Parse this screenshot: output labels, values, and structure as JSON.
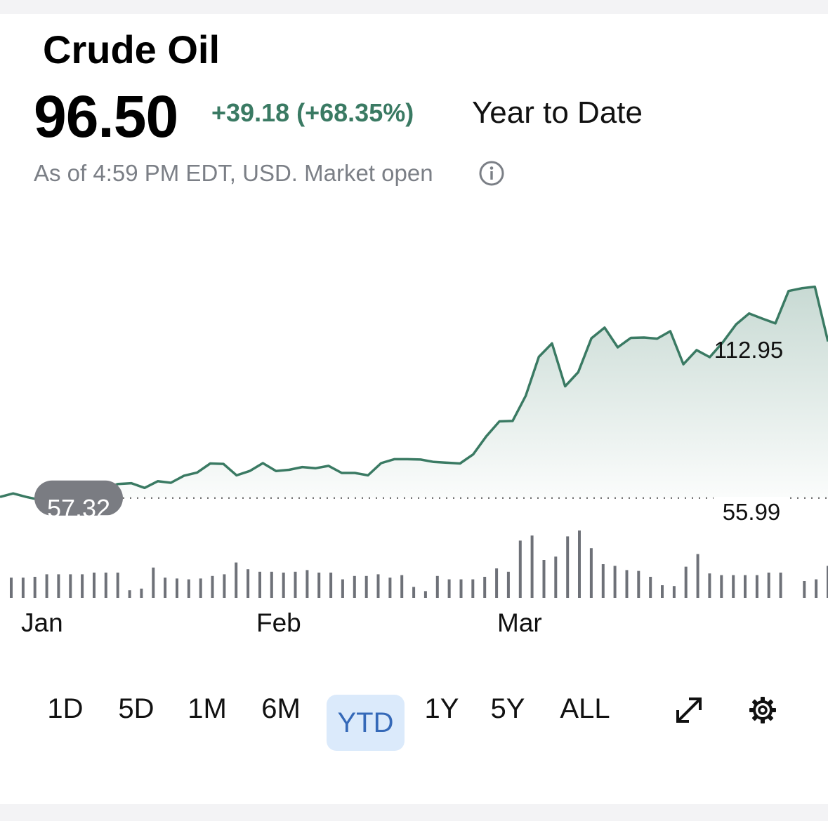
{
  "header": {
    "title": "Crude Oil",
    "price": "96.50",
    "change": "+39.18 (+68.35%)",
    "period": "Year to Date",
    "as_of": "As of 4:59 PM EDT, USD. Market open",
    "info_icon": "info-icon"
  },
  "colors": {
    "accent_green": "#3a7a63",
    "volume_gray": "#6e7178",
    "active_tab_bg": "#dbeafb",
    "active_tab_text": "#3569b8",
    "negative_red": "#c0392b"
  },
  "chart_data": {
    "type": "line",
    "x_tick_labels": [
      "Jan",
      "Feb",
      "Mar"
    ],
    "high_label": "112.95",
    "low_label": "55.99",
    "baseline_label": "57.32",
    "baseline_value": 57.32,
    "ylim": [
      40,
      125
    ],
    "series": [
      {
        "values": [
          57.6,
          58.5,
          57.6,
          56.9,
          58.0,
          58.6,
          59.5,
          59.2,
          59.9,
          60.9,
          61.1,
          59.9,
          61.6,
          61.2,
          63.0,
          63.8,
          66.1,
          66.0,
          63.1,
          64.2,
          66.2,
          64.2,
          64.5,
          65.2,
          64.9,
          65.5,
          63.7,
          63.7,
          63.1,
          66.2,
          67.2,
          67.2,
          67.1,
          66.5,
          66.3,
          66.1,
          68.4,
          73.0,
          76.8,
          76.9,
          83.3,
          93.2,
          96.6,
          85.7,
          89.3,
          97.9,
          100.6,
          95.6,
          98.0,
          98.1,
          97.8,
          99.7,
          91.3,
          94.9,
          93.1,
          96.9,
          101.4,
          104.2,
          102.9,
          101.7,
          109.9,
          110.6,
          111.0,
          97.1
        ]
      }
    ],
    "volume": [
      24,
      24,
      25,
      28,
      28,
      28,
      28,
      30,
      30,
      30,
      9,
      11,
      36,
      24,
      23,
      22,
      23,
      26,
      28,
      42,
      34,
      31,
      31,
      30,
      31,
      33,
      30,
      30,
      22,
      26,
      26,
      28,
      24,
      27,
      13,
      8,
      26,
      22,
      22,
      22,
      25,
      35,
      31,
      68,
      74,
      45,
      49,
      73,
      80,
      59,
      40,
      38,
      33,
      32,
      25,
      15,
      14,
      37,
      52,
      29,
      27,
      27,
      27,
      27,
      30,
      30,
      0,
      20,
      22,
      38
    ]
  },
  "tabs": {
    "items": [
      {
        "label": "1D"
      },
      {
        "label": "5D"
      },
      {
        "label": "1M"
      },
      {
        "label": "6M"
      },
      {
        "label": "YTD"
      },
      {
        "label": "1Y"
      },
      {
        "label": "5Y"
      },
      {
        "label": "ALL"
      }
    ],
    "active": "YTD",
    "expand_icon": "expand-icon",
    "settings_icon": "gear-icon"
  }
}
